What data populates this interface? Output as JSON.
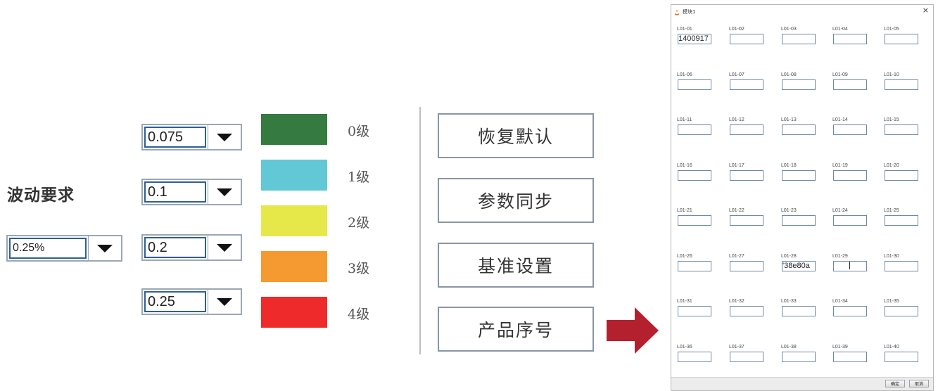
{
  "fluctuation": {
    "label": "波动要求",
    "value": "0.25%"
  },
  "thresholds": [
    "0.075",
    "0.1",
    "0.2",
    "0.25"
  ],
  "levels": [
    {
      "label": "0级",
      "color": "#357b3f"
    },
    {
      "label": "1级",
      "color": "#62c8d6"
    },
    {
      "label": "2级",
      "color": "#e6e84a"
    },
    {
      "label": "3级",
      "color": "#f59a30"
    },
    {
      "label": "4级",
      "color": "#ee2b2a"
    }
  ],
  "actions": [
    "恢复默认",
    "参数同步",
    "基准设置",
    "产品序号"
  ],
  "arrow_color": "#b5202e",
  "dialog": {
    "title": "模块1",
    "close_glyph": "×",
    "cells": [
      {
        "label": "L01-01",
        "value": "1400917"
      },
      {
        "label": "L01-02",
        "value": ""
      },
      {
        "label": "L01-03",
        "value": ""
      },
      {
        "label": "L01-04",
        "value": ""
      },
      {
        "label": "L01-05",
        "value": ""
      },
      {
        "label": "L01-06",
        "value": ""
      },
      {
        "label": "L01-07",
        "value": ""
      },
      {
        "label": "L01-08",
        "value": ""
      },
      {
        "label": "L01-09",
        "value": ""
      },
      {
        "label": "L01-10",
        "value": ""
      },
      {
        "label": "L01-11",
        "value": ""
      },
      {
        "label": "L01-12",
        "value": ""
      },
      {
        "label": "L01-13",
        "value": ""
      },
      {
        "label": "L01-14",
        "value": ""
      },
      {
        "label": "L01-15",
        "value": ""
      },
      {
        "label": "L01-16",
        "value": ""
      },
      {
        "label": "L01-17",
        "value": ""
      },
      {
        "label": "L01-18",
        "value": ""
      },
      {
        "label": "L01-19",
        "value": ""
      },
      {
        "label": "L01-20",
        "value": ""
      },
      {
        "label": "L01-21",
        "value": ""
      },
      {
        "label": "L01-22",
        "value": ""
      },
      {
        "label": "L01-23",
        "value": ""
      },
      {
        "label": "L01-24",
        "value": ""
      },
      {
        "label": "L01-25",
        "value": ""
      },
      {
        "label": "L01-26",
        "value": ""
      },
      {
        "label": "L01-27",
        "value": ""
      },
      {
        "label": "L01-28",
        "value": "'38e80a"
      },
      {
        "label": "L01-29",
        "value": ""
      },
      {
        "label": "L01-30",
        "value": ""
      },
      {
        "label": "L01-31",
        "value": ""
      },
      {
        "label": "L01-32",
        "value": ""
      },
      {
        "label": "L01-33",
        "value": ""
      },
      {
        "label": "L01-34",
        "value": ""
      },
      {
        "label": "L01-35",
        "value": ""
      },
      {
        "label": "L01-36",
        "value": ""
      },
      {
        "label": "L01-37",
        "value": ""
      },
      {
        "label": "L01-38",
        "value": ""
      },
      {
        "label": "L01-39",
        "value": ""
      },
      {
        "label": "L01-40",
        "value": ""
      }
    ],
    "ok_label": "确定",
    "cancel_label": "取消"
  }
}
